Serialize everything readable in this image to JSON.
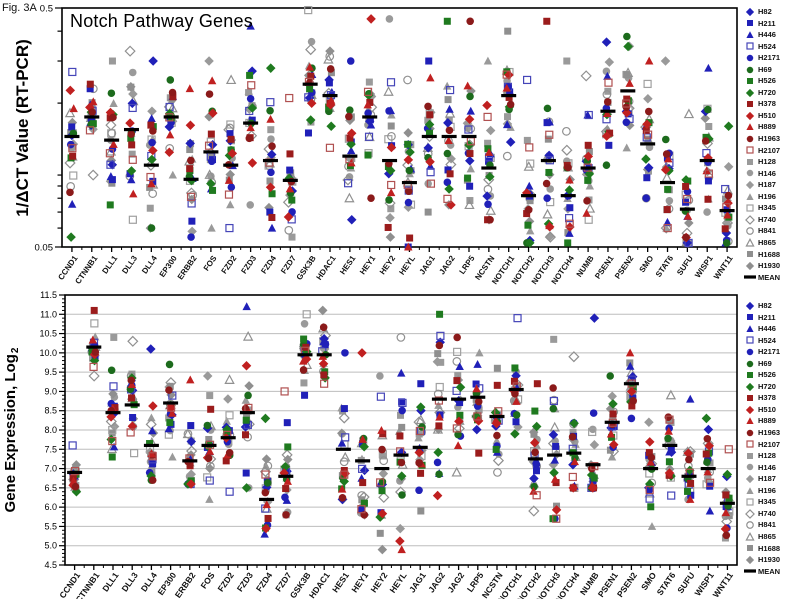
{
  "figure_label": "Fig. 3A",
  "cell_lines": [
    {
      "label": "H82",
      "shape": "diamond",
      "color": "#2020b8",
      "filled": true
    },
    {
      "label": "H211",
      "shape": "square",
      "color": "#2020b8",
      "filled": true
    },
    {
      "label": "H446",
      "shape": "triangle",
      "color": "#2020b8",
      "filled": true
    },
    {
      "label": "H524",
      "shape": "square",
      "color": "#4545b8",
      "filled": false
    },
    {
      "label": "H2171",
      "shape": "circle",
      "color": "#2020b8",
      "filled": true
    },
    {
      "label": "H69",
      "shape": "circle",
      "color": "#1c6b1c",
      "filled": true
    },
    {
      "label": "H526",
      "shape": "square",
      "color": "#1f7a1f",
      "filled": true
    },
    {
      "label": "H720",
      "shape": "diamond",
      "color": "#1f7a1f",
      "filled": true
    },
    {
      "label": "H378",
      "shape": "square",
      "color": "#9b1c1c",
      "filled": true
    },
    {
      "label": "H510",
      "shape": "diamond",
      "color": "#c02020",
      "filled": true
    },
    {
      "label": "H889",
      "shape": "triangle",
      "color": "#c02020",
      "filled": true
    },
    {
      "label": "H1963",
      "shape": "circle",
      "color": "#8b1a1a",
      "filled": true
    },
    {
      "label": "H2107",
      "shape": "square",
      "color": "#b05050",
      "filled": false
    },
    {
      "label": "H128",
      "shape": "square",
      "color": "#9a9a9a",
      "filled": true
    },
    {
      "label": "H146",
      "shape": "circle",
      "color": "#9a9a9a",
      "filled": true
    },
    {
      "label": "H187",
      "shape": "diamond",
      "color": "#9a9a9a",
      "filled": true
    },
    {
      "label": "H196",
      "shape": "triangle",
      "color": "#9a9a9a",
      "filled": true
    },
    {
      "label": "H345",
      "shape": "square",
      "color": "#a0a0a0",
      "filled": false
    },
    {
      "label": "H740",
      "shape": "diamond",
      "color": "#909090",
      "filled": false
    },
    {
      "label": "H841",
      "shape": "circle",
      "color": "#909090",
      "filled": false
    },
    {
      "label": "H865",
      "shape": "triangle",
      "color": "#909090",
      "filled": false
    },
    {
      "label": "H1688",
      "shape": "square",
      "color": "#8f8f8f",
      "filled": true
    },
    {
      "label": "H1930",
      "shape": "diamond",
      "color": "#8f8f8f",
      "filled": true
    },
    {
      "label": "MEAN",
      "shape": "dash",
      "color": "#000000",
      "filled": true
    }
  ],
  "chart_data": [
    {
      "type": "scatter",
      "title": "Notch Pathway Genes",
      "ylabel": "1/ΔCT Value (RT-PCR)",
      "yscale": "log",
      "ylim": [
        0.05,
        0.5
      ],
      "yticks": [
        "0.5",
        "0.05"
      ],
      "grid": false,
      "legend_position": "right",
      "categories": [
        "CCND1",
        "CTNNB1",
        "DLL1",
        "DLL3",
        "DLL4",
        "EP300",
        "ERBB2",
        "FOS",
        "FZD2",
        "FZD3",
        "FZD4",
        "FZD7",
        "GSK3B",
        "HDAC1",
        "HES1",
        "HEY1",
        "HEY2",
        "HEYL",
        "JAG1",
        "JAG2",
        "LRP5",
        "NCSTN",
        "NOTCH1",
        "NOTCH2",
        "NOTCH3",
        "NOTCH4",
        "NUMB",
        "PSEN1",
        "PSEN2",
        "SMO",
        "STAT6",
        "SUFU",
        "WISP1",
        "WNT11"
      ],
      "mean_values": [
        0.145,
        0.175,
        0.14,
        0.155,
        0.11,
        0.175,
        0.096,
        0.125,
        0.11,
        0.165,
        0.115,
        0.095,
        0.24,
        0.215,
        0.12,
        0.175,
        0.115,
        0.093,
        0.145,
        0.145,
        0.145,
        0.107,
        0.215,
        0.082,
        0.115,
        0.082,
        0.107,
        0.185,
        0.225,
        0.135,
        0.093,
        0.072,
        0.115,
        0.071
      ],
      "range_low": [
        0.055,
        0.1,
        0.075,
        0.065,
        0.06,
        0.1,
        0.055,
        0.06,
        0.06,
        0.075,
        0.06,
        0.055,
        0.15,
        0.13,
        0.065,
        0.08,
        0.055,
        0.05,
        0.07,
        0.075,
        0.075,
        0.065,
        0.12,
        0.052,
        0.055,
        0.052,
        0.065,
        0.11,
        0.13,
        0.08,
        0.06,
        0.052,
        0.07,
        0.052
      ],
      "range_high": [
        0.27,
        0.24,
        0.3,
        0.33,
        0.3,
        0.25,
        0.23,
        0.3,
        0.25,
        0.42,
        0.28,
        0.21,
        0.49,
        0.33,
        0.3,
        0.45,
        0.45,
        0.25,
        0.3,
        0.44,
        0.44,
        0.3,
        0.4,
        0.25,
        0.44,
        0.3,
        0.26,
        0.36,
        0.38,
        0.3,
        0.3,
        0.18,
        0.28,
        0.16
      ]
    },
    {
      "type": "scatter",
      "title": "",
      "ylabel": "Gene Expression, Log",
      "ylabel_sub": "2",
      "yscale": "linear",
      "ylim": [
        4.5,
        11.5
      ],
      "ytick_step": 0.5,
      "yticks": [
        "11.5",
        "11.0",
        "10.5",
        "10.0",
        "9.5",
        "9.0",
        "8.5",
        "8.0",
        "7.5",
        "7.0",
        "6.5",
        "6.0",
        "5.5",
        "5.0",
        "4.5"
      ],
      "grid": true,
      "legend_position": "right",
      "categories": [
        "CCND1",
        "CTNNB1",
        "DLL1",
        "DLL3",
        "DLL4",
        "EP300",
        "ERBB2",
        "FOS",
        "FZD2",
        "FZD3",
        "FZD4",
        "FZD7",
        "GSK3B",
        "HDAC1",
        "HES1",
        "HEY1",
        "HEY2",
        "HEYL",
        "JAG1",
        "JAG2",
        "JAG2",
        "LRP5",
        "NCSTN",
        "NOTCH1",
        "NOTCH2",
        "NOTCH3",
        "NOTCH4",
        "NUMB",
        "PSEN1",
        "PSEN2",
        "SMO",
        "STAT6",
        "SUFU",
        "WISP1",
        "WNT11"
      ],
      "mean_values": [
        6.9,
        10.15,
        8.45,
        8.65,
        7.6,
        8.7,
        7.2,
        7.6,
        7.8,
        8.45,
        6.2,
        6.8,
        9.95,
        9.95,
        7.5,
        7.2,
        7.0,
        7.35,
        7.55,
        8.8,
        8.8,
        8.85,
        8.35,
        9.05,
        7.25,
        7.35,
        7.4,
        7.1,
        8.2,
        9.2,
        7.0,
        7.6,
        6.8,
        7.0,
        6.1
      ],
      "range_low": [
        6.4,
        9.4,
        7.3,
        7.4,
        6.7,
        7.3,
        6.6,
        6.2,
        6.4,
        6.5,
        5.3,
        5.8,
        8.9,
        9.2,
        6.2,
        5.8,
        4.9,
        4.9,
        5.9,
        6.3,
        6.9,
        7.4,
        6.9,
        7.9,
        5.9,
        5.7,
        6.5,
        6.5,
        7.3,
        8.3,
        5.5,
        6.3,
        6.2,
        5.9,
        5.2
      ],
      "range_high": [
        7.6,
        11.1,
        10.4,
        10.3,
        10.1,
        9.7,
        9.3,
        9.4,
        9.3,
        11.2,
        8.3,
        9.0,
        11.0,
        11.1,
        10.0,
        10.0,
        9.4,
        10.4,
        9.2,
        11.0,
        10.4,
        10.0,
        9.6,
        10.9,
        9.2,
        10.35,
        9.9,
        10.9,
        9.4,
        10.0,
        8.2,
        8.9,
        8.8,
        8.3,
        7.5
      ]
    }
  ]
}
